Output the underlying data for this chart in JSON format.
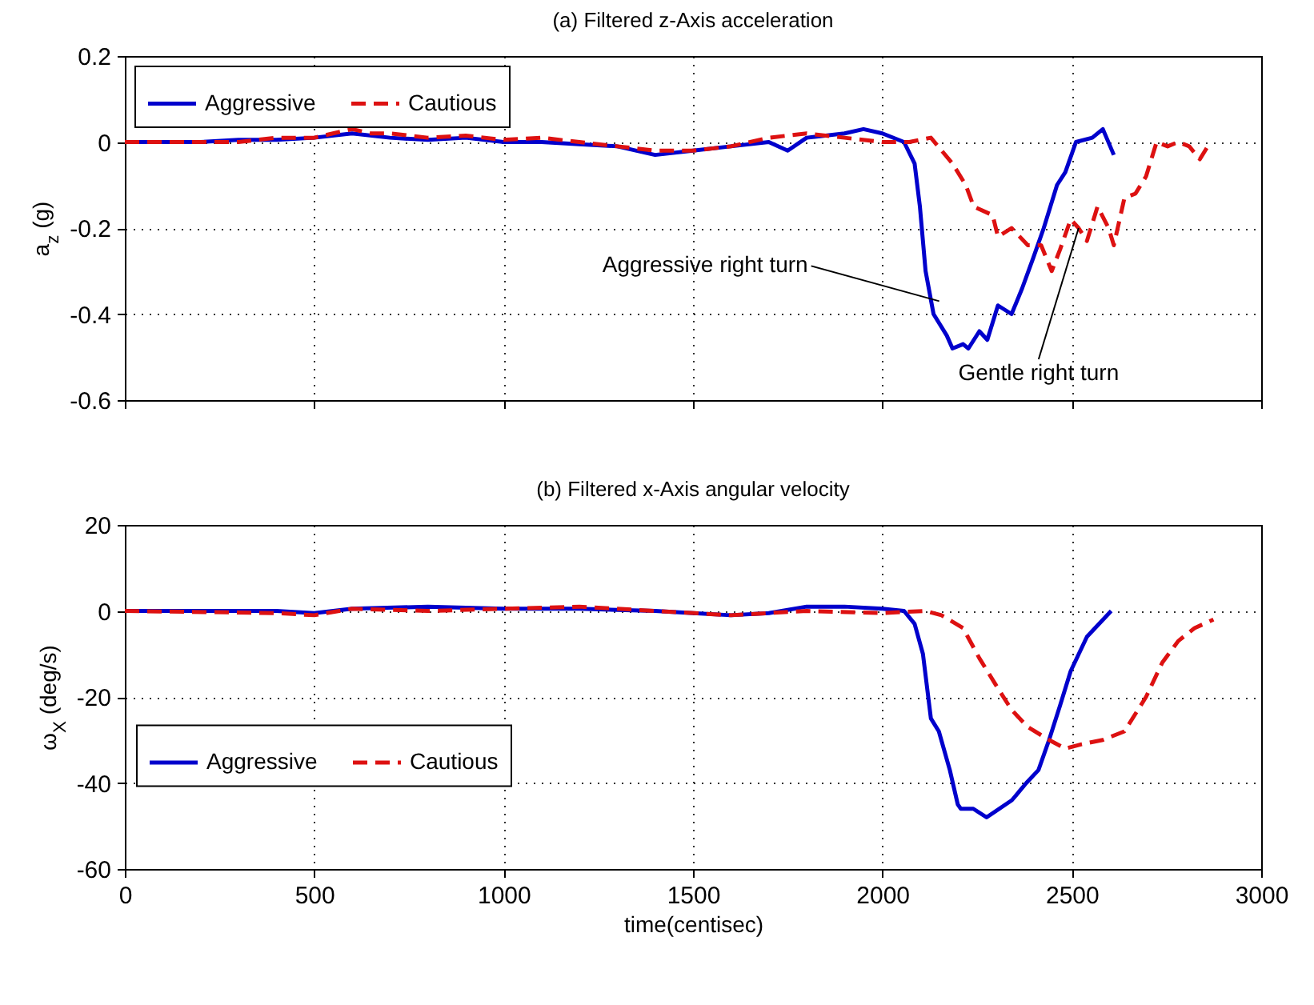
{
  "chart_data": [
    {
      "type": "line",
      "title": "(a) Filtered z-Axis acceleration",
      "ylabel": "a$_{z}$ (g)",
      "xlim": [
        0,
        3000
      ],
      "xticks": [
        0,
        500,
        1000,
        1500,
        2000,
        2500,
        3000
      ],
      "ylim": [
        -0.6,
        0.2
      ],
      "yticks": [
        -0.6,
        -0.4,
        -0.2,
        0,
        0.2
      ],
      "tick_labels": "y",
      "grid": true,
      "legend": "top left",
      "series": [
        {
          "name": "Aggressive",
          "color": "#0000cc",
          "line_style": "solid",
          "x": [
            0,
            100,
            200,
            300,
            400,
            500,
            600,
            700,
            800,
            900,
            1000,
            1100,
            1200,
            1300,
            1400,
            1500,
            1600,
            1700,
            1750,
            1800,
            1900,
            1950,
            2000,
            2057,
            2085,
            2099,
            2114,
            2135,
            2170,
            2185,
            2213,
            2227,
            2256,
            2277,
            2305,
            2341,
            2369,
            2398,
            2426,
            2461,
            2483,
            2511,
            2554,
            2582,
            2611
          ],
          "values": [
            0,
            0,
            0,
            0.005,
            0.005,
            0.01,
            0.02,
            0.01,
            0.005,
            0.01,
            0,
            0,
            -0.005,
            -0.01,
            -0.03,
            -0.02,
            -0.01,
            0,
            -0.02,
            0.01,
            0.02,
            0.03,
            0.02,
            0,
            -0.05,
            -0.15,
            -0.3,
            -0.4,
            -0.45,
            -0.48,
            -0.47,
            -0.48,
            -0.44,
            -0.46,
            -0.38,
            -0.4,
            -0.34,
            -0.27,
            -0.2,
            -0.1,
            -0.07,
            0,
            0.01,
            0.03,
            -0.03
          ]
        },
        {
          "name": "Cautious",
          "color": "#dd1111",
          "line_style": "dashed",
          "x": [
            0,
            100,
            200,
            300,
            400,
            500,
            600,
            650,
            700,
            800,
            900,
            1000,
            1100,
            1200,
            1300,
            1400,
            1500,
            1600,
            1700,
            1800,
            1900,
            2000,
            2071,
            2128,
            2185,
            2220,
            2241,
            2291,
            2305,
            2341,
            2384,
            2419,
            2447,
            2469,
            2497,
            2518,
            2540,
            2568,
            2597,
            2611,
            2639,
            2668,
            2696,
            2724,
            2753,
            2781,
            2810,
            2838,
            2866
          ],
          "values": [
            0,
            0,
            0,
            0,
            0.01,
            0.01,
            0.03,
            0.02,
            0.02,
            0.01,
            0.015,
            0.005,
            0.01,
            0,
            -0.01,
            -0.02,
            -0.02,
            -0.01,
            0.01,
            0.02,
            0.01,
            0,
            0,
            0.01,
            -0.05,
            -0.1,
            -0.15,
            -0.17,
            -0.22,
            -0.2,
            -0.24,
            -0.24,
            -0.3,
            -0.25,
            -0.18,
            -0.2,
            -0.23,
            -0.15,
            -0.2,
            -0.24,
            -0.13,
            -0.12,
            -0.08,
            0,
            -0.01,
            0,
            -0.01,
            -0.04,
            0
          ]
        }
      ],
      "annotations": [
        {
          "text": "Aggressive right turn",
          "x": 2150,
          "y": -0.37
        },
        {
          "text": "Gentle right turn",
          "x": 2518,
          "y": -0.2
        }
      ]
    },
    {
      "type": "line",
      "title": "(b) Filtered x-Axis angular velocity",
      "xlabel": "time(centisec)",
      "ylabel": "ω$_{X}$ (deg/s)",
      "xlim": [
        0,
        3000
      ],
      "xticks": [
        0,
        500,
        1000,
        1500,
        2000,
        2500,
        3000
      ],
      "ylim": [
        -60,
        20
      ],
      "yticks": [
        -60,
        -40,
        -20,
        0,
        20
      ],
      "grid": true,
      "legend": "left",
      "series": [
        {
          "name": "Aggressive",
          "color": "#0000cc",
          "line_style": "solid",
          "x": [
            0,
            400,
            500,
            600,
            800,
            1000,
            1200,
            1400,
            1500,
            1600,
            1700,
            1800,
            1900,
            2000,
            2057,
            2085,
            2107,
            2128,
            2149,
            2178,
            2199,
            2207,
            2240,
            2275,
            2342,
            2380,
            2412,
            2440,
            2469,
            2497,
            2540,
            2604
          ],
          "values": [
            0,
            0,
            -0.5,
            0.5,
            1,
            0.5,
            0.5,
            0,
            -0.5,
            -1,
            -0.5,
            1,
            1,
            0.5,
            0,
            -3,
            -10,
            -25,
            -28,
            -37,
            -45,
            -46,
            -46,
            -48,
            -44,
            -40,
            -37,
            -30,
            -22,
            -14,
            -6,
            0
          ]
        },
        {
          "name": "Cautious",
          "color": "#dd1111",
          "line_style": "dashed",
          "x": [
            0,
            400,
            500,
            600,
            800,
            1000,
            1200,
            1400,
            1600,
            1800,
            2000,
            2114,
            2156,
            2213,
            2256,
            2298,
            2341,
            2384,
            2440,
            2483,
            2526,
            2582,
            2639,
            2696,
            2739,
            2781,
            2824,
            2874
          ],
          "values": [
            0,
            -0.5,
            -1,
            0.5,
            0,
            0.5,
            1,
            0,
            -1,
            0,
            -0.5,
            0,
            -1,
            -4,
            -11,
            -17,
            -23,
            -27,
            -30,
            -32,
            -31,
            -30,
            -28,
            -20,
            -12,
            -7,
            -4,
            -2
          ]
        }
      ]
    }
  ]
}
